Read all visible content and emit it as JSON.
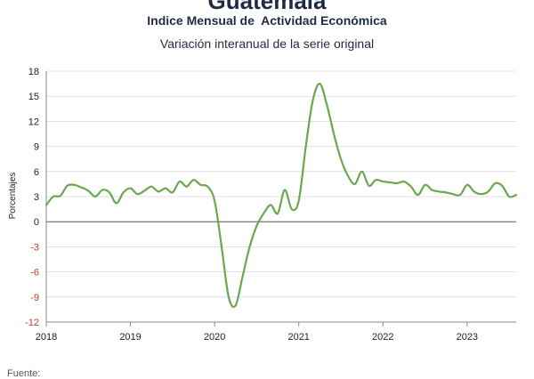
{
  "header": {
    "title": "Guatemala",
    "subtitle": "Indice Mensual de  Actividad Económica",
    "subtitle2": "Variación interanual de la serie original"
  },
  "footer": {
    "source_label": "Fuente:"
  },
  "chart_data": {
    "type": "line",
    "title": "Guatemala",
    "subtitle": "Indice Mensual de  Actividad Económica",
    "ylabel": "Porcentajes",
    "xlabel": "",
    "ylim": [
      -12,
      18
    ],
    "yticks": [
      18,
      15,
      12,
      9,
      6,
      3,
      0,
      -3,
      -6,
      -9,
      -12
    ],
    "xlim": [
      "2018-01",
      "2023-08"
    ],
    "xticks": [
      "2018",
      "2019",
      "2020",
      "2021",
      "2022",
      "2023"
    ],
    "grid": "horizontal",
    "line_color": "#6aa84f",
    "axis_color": "#888888",
    "negative_tick_color": "#c0392b",
    "series": [
      {
        "x": [
          "2018-01",
          "2018-02",
          "2018-03",
          "2018-04",
          "2018-05",
          "2018-06",
          "2018-07",
          "2018-08",
          "2018-09",
          "2018-10",
          "2018-11",
          "2018-12",
          "2019-01",
          "2019-02",
          "2019-03",
          "2019-04",
          "2019-05",
          "2019-06",
          "2019-07",
          "2019-08",
          "2019-09",
          "2019-10",
          "2019-11",
          "2019-12",
          "2020-01",
          "2020-02",
          "2020-03",
          "2020-04",
          "2020-05",
          "2020-06",
          "2020-07",
          "2020-08",
          "2020-09",
          "2020-10",
          "2020-11",
          "2020-12",
          "2021-01",
          "2021-02",
          "2021-03",
          "2021-04",
          "2021-05",
          "2021-06",
          "2021-07",
          "2021-08",
          "2021-09",
          "2021-10",
          "2021-11",
          "2021-12",
          "2022-01",
          "2022-02",
          "2022-03",
          "2022-04",
          "2022-05",
          "2022-06",
          "2022-07",
          "2022-08",
          "2022-09",
          "2022-10",
          "2022-11",
          "2022-12",
          "2023-01",
          "2023-02",
          "2023-03",
          "2023-04",
          "2023-05",
          "2023-06",
          "2023-07",
          "2023-08"
        ],
        "values": [
          2.0,
          3.0,
          3.1,
          4.3,
          4.4,
          4.1,
          3.7,
          3.0,
          3.8,
          3.5,
          2.2,
          3.5,
          4.0,
          3.3,
          3.7,
          4.2,
          3.6,
          4.0,
          3.5,
          4.8,
          4.2,
          5.0,
          4.4,
          4.2,
          2.5,
          -3.0,
          -9.0,
          -10.0,
          -6.5,
          -3.0,
          -0.5,
          1.0,
          2.0,
          1.0,
          3.8,
          1.5,
          2.5,
          9.0,
          14.5,
          16.5,
          14.0,
          10.5,
          7.5,
          5.5,
          4.5,
          6.0,
          4.3,
          5.0,
          4.8,
          4.7,
          4.6,
          4.8,
          4.2,
          3.2,
          4.4,
          3.8,
          3.6,
          3.5,
          3.3,
          3.2,
          4.4,
          3.6,
          3.3,
          3.6,
          4.6,
          4.3,
          3.0,
          3.2
        ]
      }
    ]
  }
}
